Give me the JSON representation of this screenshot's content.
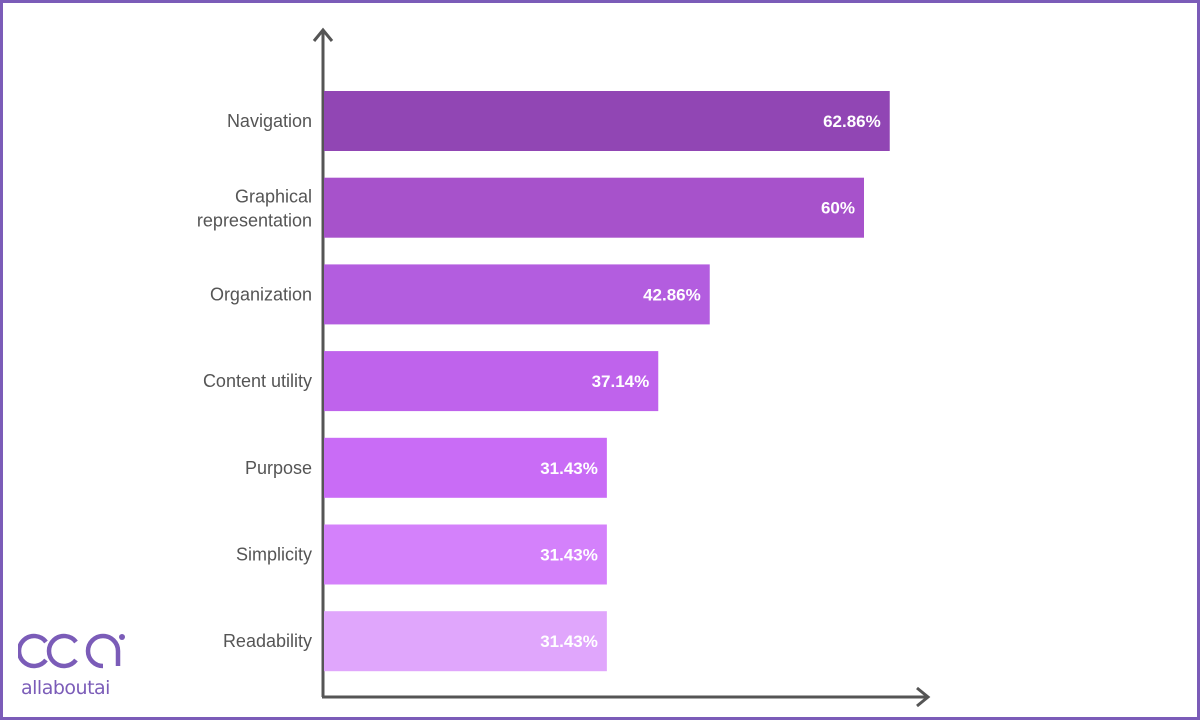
{
  "chart_data": {
    "type": "bar",
    "orientation": "horizontal",
    "categories": [
      "Navigation",
      "Graphical representation",
      "Organization",
      "Content utility",
      "Purpose",
      "Simplicity",
      "Readability"
    ],
    "values": [
      62.86,
      60,
      42.86,
      37.14,
      31.43,
      31.43,
      31.43
    ],
    "labels": [
      "62.86%",
      "60%",
      "42.86%",
      "37.14%",
      "31.43%",
      "31.43%",
      "31.43%"
    ],
    "colors": [
      "#9146b4",
      "#a752cb",
      "#b35ddf",
      "#bf63ec",
      "#c96cf6",
      "#d481fb",
      "#e0a6fc"
    ],
    "title": "",
    "xlabel": "",
    "ylabel": "",
    "xlim": [
      0,
      67
    ],
    "grid": false
  },
  "brand": {
    "name": "allaboutai",
    "color": "#7b5cb8"
  }
}
